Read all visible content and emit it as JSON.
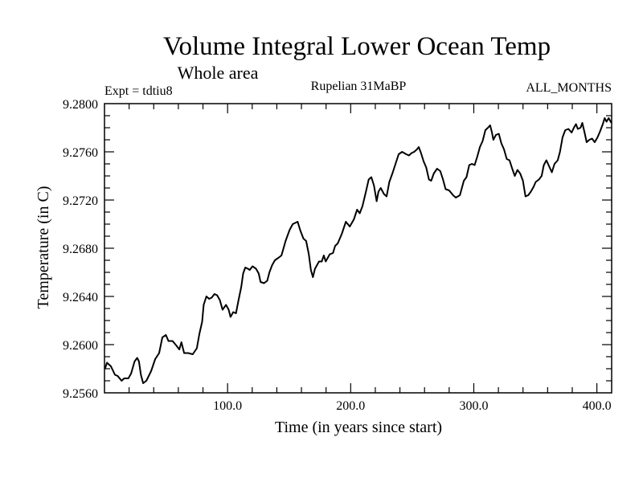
{
  "chart_data": {
    "type": "line",
    "title": "Volume Integral Lower Ocean Temp",
    "subtitle": "Whole area",
    "annotations": {
      "left": "Expt = tdtiu8",
      "center": "Rupelian  31MaBP",
      "right": "ALL_MONTHS"
    },
    "xlabel": "Time (in years since start)",
    "ylabel": "Temperature (in C)",
    "xlim": [
      0,
      412
    ],
    "ylim": [
      9.256,
      9.28
    ],
    "x_major_ticks": [
      100,
      200,
      300,
      400
    ],
    "x_tick_labels": [
      "100.0",
      "200.0",
      "300.0",
      "400.0"
    ],
    "x_minor_step": 20,
    "y_major_ticks": [
      9.256,
      9.26,
      9.264,
      9.268,
      9.272,
      9.276,
      9.28
    ],
    "y_tick_labels": [
      "9.2560",
      "9.2600",
      "9.2640",
      "9.2680",
      "9.2720",
      "9.2760",
      "9.2800"
    ],
    "y_minor_step": 0.001,
    "grid": false,
    "series": [
      {
        "name": "Volume Integral Lower Ocean Temp",
        "color": "#000000",
        "x": [
          0.4,
          2,
          5.2,
          8.5,
          10.7,
          13.9,
          16,
          19.4,
          21.6,
          24.4,
          26.6,
          28,
          29.6,
          31.4,
          34,
          37.9,
          41.2,
          44.4,
          47,
          49.9,
          52,
          55.3,
          58.6,
          60.8,
          62.5,
          64.7,
          68,
          71.7,
          75,
          77.1,
          79.3,
          80.6,
          82.8,
          85,
          87.1,
          89.3,
          91.5,
          93.7,
          95.9,
          98.7,
          100.9,
          102.4,
          104.6,
          106.8,
          108.9,
          111.1,
          112.6,
          114.4,
          116.5,
          118,
          120.3,
          123.1,
          125.3,
          126.8,
          129.6,
          132.2,
          134,
          136.2,
          138.4,
          141.2,
          143.8,
          147.1,
          150.3,
          152.9,
          156.9,
          159,
          161.6,
          163.8,
          166,
          167.7,
          169.3,
          171,
          174.3,
          176.5,
          178.2,
          179.7,
          183,
          185.6,
          187.4,
          189.5,
          192.8,
          196.1,
          199.3,
          202.6,
          205.2,
          207.4,
          209.6,
          212.4,
          214.6,
          216.8,
          218.9,
          221.1,
          222.6,
          224.4,
          227,
          229.2,
          231.4,
          234.2,
          236.4,
          239,
          241.8,
          245.1,
          247.3,
          249.5,
          251.6,
          253.8,
          255.3,
          257.1,
          259.3,
          261.4,
          263.6,
          265.4,
          267.5,
          270.2,
          272.8,
          275,
          277.1,
          280,
          283.2,
          285.4,
          288.7,
          291.9,
          294.1,
          296.3,
          298.5,
          300.7,
          302.8,
          305,
          307.2,
          309.4,
          311.5,
          313.3,
          314.8,
          315.9,
          318,
          320.3,
          322.4,
          324.6,
          326.8,
          329,
          331.2,
          333.3,
          335.5,
          337.7,
          339.9,
          342,
          344.2,
          346.4,
          348.6,
          350.3,
          352.9,
          355.1,
          356.9,
          359,
          361.2,
          363.4,
          365.6,
          368.2,
          370,
          372.1,
          374.3,
          376.9,
          379.5,
          381.3,
          383,
          384.5,
          386.7,
          388.2,
          390,
          391.7,
          393.9,
          396.1,
          398.2,
          400.5,
          402.6,
          404.8,
          406.3,
          407.8,
          409.6,
          411.8
        ],
        "y": [
          9.258,
          9.2585,
          9.2582,
          9.2575,
          9.2574,
          9.257,
          9.2572,
          9.2572,
          9.2576,
          9.2586,
          9.2589,
          9.2586,
          9.2575,
          9.2568,
          9.257,
          9.2578,
          9.2588,
          9.2593,
          9.2606,
          9.2608,
          9.2603,
          9.2603,
          9.2599,
          9.2596,
          9.2602,
          9.2593,
          9.2593,
          9.2592,
          9.2597,
          9.2609,
          9.2619,
          9.2633,
          9.264,
          9.2638,
          9.2639,
          9.2642,
          9.2641,
          9.2637,
          9.2629,
          9.2633,
          9.2629,
          9.2623,
          9.2627,
          9.2626,
          9.2637,
          9.2648,
          9.2659,
          9.2664,
          9.2663,
          9.2662,
          9.2665,
          9.2663,
          9.2659,
          9.2652,
          9.2651,
          9.2653,
          9.266,
          9.2666,
          9.267,
          9.2672,
          9.2674,
          9.2686,
          9.2695,
          9.27,
          9.2702,
          9.2695,
          9.2688,
          9.2686,
          9.2675,
          9.2662,
          9.2656,
          9.2663,
          9.2669,
          9.2669,
          9.2674,
          9.2669,
          9.2675,
          9.2676,
          9.2682,
          9.2684,
          9.2692,
          9.2702,
          9.2698,
          9.2704,
          9.2712,
          9.2709,
          9.2715,
          9.2727,
          9.2737,
          9.2739,
          9.2732,
          9.2719,
          9.2727,
          9.273,
          9.2725,
          9.2723,
          9.2735,
          9.2743,
          9.275,
          9.2758,
          9.276,
          9.2758,
          9.2757,
          9.2759,
          9.276,
          9.2762,
          9.2764,
          9.2759,
          9.2752,
          9.2747,
          9.2737,
          9.2736,
          9.2742,
          9.2746,
          9.2744,
          9.2737,
          9.2729,
          9.2728,
          9.2724,
          9.2722,
          9.2724,
          9.2736,
          9.2739,
          9.2749,
          9.275,
          9.2749,
          9.2756,
          9.2764,
          9.2769,
          9.2778,
          9.278,
          9.2782,
          9.2776,
          9.277,
          9.2774,
          9.2775,
          9.2767,
          9.2762,
          9.2754,
          9.2753,
          9.2746,
          9.274,
          9.2745,
          9.2742,
          9.2736,
          9.2723,
          9.2724,
          9.2727,
          9.2731,
          9.2735,
          9.2737,
          9.274,
          9.2749,
          9.2753,
          9.2748,
          9.2743,
          9.275,
          9.2753,
          9.276,
          9.2772,
          9.2778,
          9.2779,
          9.2776,
          9.278,
          9.2783,
          9.2779,
          9.278,
          9.2784,
          9.2776,
          9.2768,
          9.277,
          9.2771,
          9.2768,
          9.2772,
          9.2777,
          9.2783,
          9.2788,
          9.2785,
          9.2788,
          9.2784
        ]
      }
    ]
  }
}
